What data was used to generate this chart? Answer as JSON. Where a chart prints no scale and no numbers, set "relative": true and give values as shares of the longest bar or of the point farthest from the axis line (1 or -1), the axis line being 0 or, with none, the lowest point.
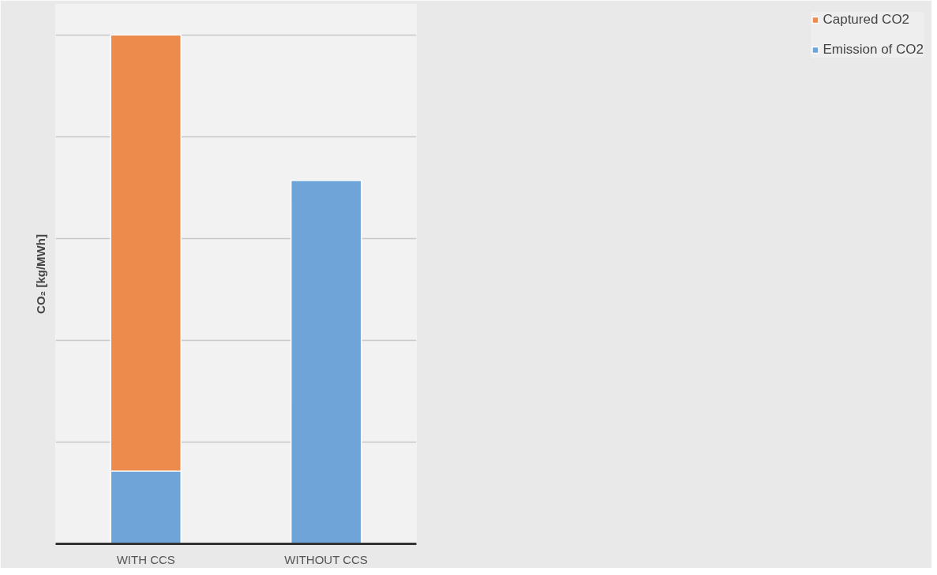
{
  "chart_data": {
    "type": "bar",
    "stacked": true,
    "relative": true,
    "ylabel": "CO₂ [kg/MWh]",
    "categories": [
      "WITH CCS",
      "WITHOUT CCS"
    ],
    "series": [
      {
        "name": "Emission of CO2",
        "color": "#6fa4d8",
        "values": [
          0.143,
          0.714
        ]
      },
      {
        "name": "Captured CO2",
        "color": "#ec8b4c",
        "values": [
          0.857,
          null
        ]
      }
    ],
    "grid": "y",
    "legend": "right"
  }
}
